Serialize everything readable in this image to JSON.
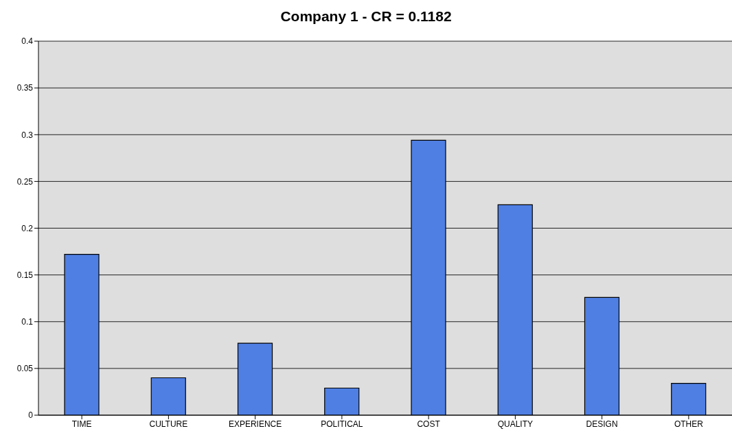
{
  "chart_data": {
    "type": "bar",
    "title": "Company 1 - CR = 0.1182",
    "categories": [
      "TIME",
      "CULTURE",
      "EXPERIENCE",
      "POLITICAL",
      "COST",
      "QUALITY",
      "DESIGN",
      "OTHER"
    ],
    "values": [
      0.172,
      0.04,
      0.077,
      0.029,
      0.294,
      0.225,
      0.126,
      0.034
    ],
    "color": "#4f7fe3",
    "ylim": [
      0,
      0.4
    ],
    "yticks": [
      0,
      0.05,
      0.1,
      0.15,
      0.2,
      0.25,
      0.3,
      0.35,
      0.4
    ],
    "grid": "y"
  }
}
